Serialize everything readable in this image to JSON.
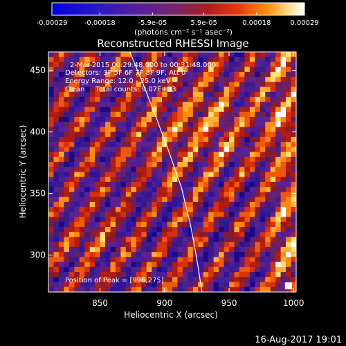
{
  "chart_data": {
    "type": "heatmap",
    "title": "Reconstructed RHESSI Image",
    "xlabel": "Heliocentric X (arcsec)",
    "ylabel": "Heliocentric Y (arcsec)",
    "xlim": [
      810,
      1002
    ],
    "ylim": [
      270,
      465
    ],
    "xticks": [
      850,
      900,
      950,
      1000
    ],
    "yticks": [
      300,
      350,
      400,
      450
    ],
    "colorbar": {
      "ticks": [
        "-0.00029",
        "-0.00018",
        "-5.9e-05",
        "5.9e-05",
        "0.00018",
        "0.00029"
      ],
      "tick_values": [
        -0.00029,
        -0.00018,
        -5.9e-05,
        5.9e-05,
        0.00018,
        0.00029
      ],
      "range": [
        -0.00029,
        0.00029
      ],
      "unit_label": "(photons cm⁻² s⁻¹ asec⁻²)"
    },
    "annotations": {
      "time_range": "2-Mar-2015 00:29:48.000 to 00:31:48.000",
      "detectors": "Detectors: 3F 5F 6F 7F 8F 9F, Att 0",
      "energy": "Energy Range: 12.0 - 25.0 keV",
      "clean": "Clean     Total counts: 9.07E+03",
      "peak": "Position of Peak = [996,275]"
    },
    "limb_curve": [
      [
        873,
        465
      ],
      [
        883,
        440
      ],
      [
        893,
        413
      ],
      [
        903,
        385
      ],
      [
        913,
        355
      ],
      [
        920,
        325
      ],
      [
        925,
        297
      ],
      [
        929,
        270
      ]
    ],
    "peak_position": [
      996,
      275
    ],
    "footer": "16-Aug-2017 19:01"
  },
  "colors": {
    "background": "#000000",
    "text": "#ffffff",
    "limb": "#ffffff"
  }
}
